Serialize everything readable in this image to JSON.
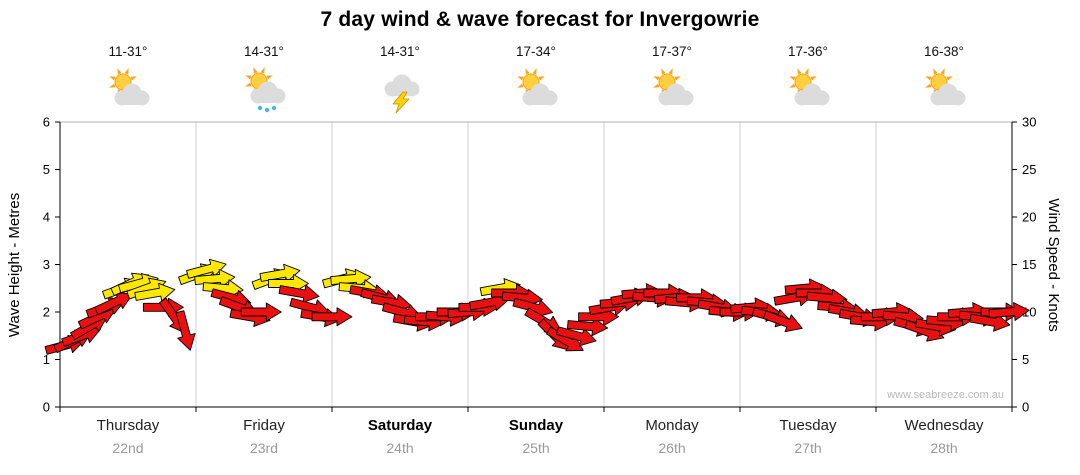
{
  "title": "7 day wind & wave forecast for Invergowrie",
  "watermark": "www.seabreeze.com.au",
  "colors": {
    "arrow_red": "#e81010",
    "arrow_yellow": "#ffe800",
    "arrow_outline": "#000000",
    "grid": "#cfcfcf",
    "axis": "#000000",
    "top_border": "#b0b0b0",
    "sun_core": "#ffcf40",
    "sun_rays": "#f5a623",
    "cloud": "#dcdcdc",
    "cloud_shadow": "#c2c2c2",
    "rain_drop": "#45b6e8",
    "lightning": "#ffd400",
    "watermark_color": "#b8b8b8"
  },
  "axes": {
    "left_title": "Wave Height - Metres",
    "right_title": "Wind Speed - Knots",
    "left_ticks": [
      0,
      1,
      2,
      3,
      4,
      5,
      6
    ],
    "right_ticks": [
      0,
      5,
      10,
      15,
      20,
      25,
      30
    ],
    "left_range": [
      0,
      6
    ],
    "right_range": [
      0,
      30
    ]
  },
  "days": [
    {
      "name": "Thursday",
      "date": "22nd",
      "temp": "11-31°",
      "icon": "sun-cloud",
      "weekend": false
    },
    {
      "name": "Friday",
      "date": "23rd",
      "temp": "14-31°",
      "icon": "sun-cloud-rain",
      "weekend": false
    },
    {
      "name": "Saturday",
      "date": "24th",
      "temp": "14-31°",
      "icon": "storm",
      "weekend": true
    },
    {
      "name": "Sunday",
      "date": "25th",
      "temp": "17-34°",
      "icon": "sun-cloud",
      "weekend": true
    },
    {
      "name": "Monday",
      "date": "26th",
      "temp": "17-37°",
      "icon": "sun-cloud",
      "weekend": false
    },
    {
      "name": "Tuesday",
      "date": "27th",
      "temp": "17-36°",
      "icon": "sun-cloud",
      "weekend": false
    },
    {
      "name": "Wednesday",
      "date": "28th",
      "temp": "16-38°",
      "icon": "sun-cloud",
      "weekend": false
    }
  ],
  "chart_data": {
    "type": "scatter",
    "subtype": "wind-arrows",
    "title": "7 day wind & wave forecast for Invergowrie",
    "xlabel": "",
    "x_categories": [
      "Thursday 22nd",
      "Friday 23rd",
      "Saturday 24th",
      "Sunday 25th",
      "Monday 26th",
      "Tuesday 27th",
      "Wednesday 28th"
    ],
    "left_axis": {
      "label": "Wave Height - Metres",
      "range": [
        0,
        6
      ],
      "ticks": [
        0,
        1,
        2,
        3,
        4,
        5,
        6
      ]
    },
    "right_axis": {
      "label": "Wind Speed - Knots",
      "range": [
        0,
        30
      ],
      "ticks": [
        0,
        5,
        10,
        15,
        20,
        25,
        30
      ]
    },
    "grid": "vertical-day-boundaries",
    "legend": "none",
    "notes": "Arrows show wind speed (knots, right axis) over time; yellow arrows = stronger wind (~12-15 kn), red = lighter (~5-12 kn); arrow rotation = wind direction trend",
    "arrows": [
      {
        "t": 0.04,
        "k": 6.5,
        "d": -15,
        "c": "r"
      },
      {
        "t": 0.1,
        "k": 7.0,
        "d": -25,
        "c": "r"
      },
      {
        "t": 0.16,
        "k": 7.5,
        "d": -20,
        "c": "r"
      },
      {
        "t": 0.22,
        "k": 8.5,
        "d": -30,
        "c": "r"
      },
      {
        "t": 0.28,
        "k": 9.5,
        "d": -25,
        "c": "r"
      },
      {
        "t": 0.34,
        "k": 10.5,
        "d": -20,
        "c": "r"
      },
      {
        "t": 0.4,
        "k": 11.0,
        "d": -25,
        "c": "r"
      },
      {
        "t": 0.46,
        "k": 12.5,
        "d": -20,
        "c": "y"
      },
      {
        "t": 0.52,
        "k": 13.0,
        "d": -25,
        "c": "y"
      },
      {
        "t": 0.58,
        "k": 13.0,
        "d": -15,
        "c": "y"
      },
      {
        "t": 0.64,
        "k": 12.5,
        "d": -20,
        "c": "y"
      },
      {
        "t": 0.7,
        "k": 12.0,
        "d": -10,
        "c": "y"
      },
      {
        "t": 0.76,
        "k": 10.5,
        "d": 0,
        "c": "r"
      },
      {
        "t": 0.84,
        "k": 9.5,
        "d": 55,
        "c": "r"
      },
      {
        "t": 0.92,
        "k": 8.0,
        "d": 75,
        "c": "r"
      },
      {
        "t": 1.02,
        "k": 14.0,
        "d": -20,
        "c": "y"
      },
      {
        "t": 1.08,
        "k": 14.5,
        "d": -15,
        "c": "y"
      },
      {
        "t": 1.14,
        "k": 13.5,
        "d": -5,
        "c": "y"
      },
      {
        "t": 1.2,
        "k": 12.5,
        "d": 5,
        "c": "y"
      },
      {
        "t": 1.26,
        "k": 11.5,
        "d": 15,
        "c": "r"
      },
      {
        "t": 1.32,
        "k": 10.5,
        "d": 20,
        "c": "r"
      },
      {
        "t": 1.4,
        "k": 9.5,
        "d": 10,
        "c": "r"
      },
      {
        "t": 1.48,
        "k": 10.0,
        "d": 0,
        "c": "r"
      },
      {
        "t": 1.56,
        "k": 13.5,
        "d": -20,
        "c": "y"
      },
      {
        "t": 1.62,
        "k": 14.0,
        "d": -10,
        "c": "y"
      },
      {
        "t": 1.68,
        "k": 13.0,
        "d": 0,
        "c": "y"
      },
      {
        "t": 1.76,
        "k": 12.0,
        "d": 10,
        "c": "r"
      },
      {
        "t": 1.84,
        "k": 10.5,
        "d": 15,
        "c": "r"
      },
      {
        "t": 1.92,
        "k": 9.5,
        "d": 10,
        "c": "r"
      },
      {
        "t": 2.0,
        "k": 9.5,
        "d": 0,
        "c": "r"
      },
      {
        "t": 2.08,
        "k": 13.5,
        "d": -15,
        "c": "y"
      },
      {
        "t": 2.14,
        "k": 13.5,
        "d": -5,
        "c": "y"
      },
      {
        "t": 2.2,
        "k": 12.5,
        "d": 5,
        "c": "y"
      },
      {
        "t": 2.28,
        "k": 12.0,
        "d": 10,
        "c": "r"
      },
      {
        "t": 2.36,
        "k": 11.5,
        "d": 15,
        "c": "r"
      },
      {
        "t": 2.44,
        "k": 11.0,
        "d": 10,
        "c": "r"
      },
      {
        "t": 2.52,
        "k": 10.0,
        "d": 15,
        "c": "r"
      },
      {
        "t": 2.6,
        "k": 9.0,
        "d": 10,
        "c": "r"
      },
      {
        "t": 2.68,
        "k": 9.0,
        "d": 5,
        "c": "r"
      },
      {
        "t": 2.76,
        "k": 9.5,
        "d": 0,
        "c": "r"
      },
      {
        "t": 2.84,
        "k": 9.5,
        "d": 5,
        "c": "r"
      },
      {
        "t": 2.92,
        "k": 10.0,
        "d": 0,
        "c": "r"
      },
      {
        "t": 3.0,
        "k": 10.0,
        "d": -5,
        "c": "r"
      },
      {
        "t": 3.08,
        "k": 10.5,
        "d": 0,
        "c": "r"
      },
      {
        "t": 3.16,
        "k": 11.0,
        "d": -10,
        "c": "r"
      },
      {
        "t": 3.24,
        "k": 12.5,
        "d": -10,
        "c": "y"
      },
      {
        "t": 3.32,
        "k": 12.0,
        "d": 0,
        "c": "r"
      },
      {
        "t": 3.4,
        "k": 11.5,
        "d": 5,
        "c": "r"
      },
      {
        "t": 3.48,
        "k": 10.5,
        "d": 15,
        "c": "r"
      },
      {
        "t": 3.56,
        "k": 9.0,
        "d": 30,
        "c": "r"
      },
      {
        "t": 3.64,
        "k": 7.5,
        "d": 45,
        "c": "r"
      },
      {
        "t": 3.72,
        "k": 7.0,
        "d": 30,
        "c": "r"
      },
      {
        "t": 3.8,
        "k": 7.5,
        "d": 15,
        "c": "r"
      },
      {
        "t": 3.88,
        "k": 8.5,
        "d": 5,
        "c": "r"
      },
      {
        "t": 3.96,
        "k": 9.5,
        "d": 0,
        "c": "r"
      },
      {
        "t": 4.04,
        "k": 10.5,
        "d": -10,
        "c": "r"
      },
      {
        "t": 4.12,
        "k": 11.0,
        "d": -5,
        "c": "r"
      },
      {
        "t": 4.2,
        "k": 11.5,
        "d": -10,
        "c": "r"
      },
      {
        "t": 4.28,
        "k": 12.0,
        "d": -5,
        "c": "r"
      },
      {
        "t": 4.36,
        "k": 11.5,
        "d": 5,
        "c": "r"
      },
      {
        "t": 4.44,
        "k": 12.0,
        "d": 0,
        "c": "r"
      },
      {
        "t": 4.52,
        "k": 11.5,
        "d": -5,
        "c": "r"
      },
      {
        "t": 4.6,
        "k": 11.0,
        "d": 5,
        "c": "r"
      },
      {
        "t": 4.68,
        "k": 11.5,
        "d": 0,
        "c": "r"
      },
      {
        "t": 4.76,
        "k": 11.0,
        "d": 5,
        "c": "r"
      },
      {
        "t": 4.84,
        "k": 10.5,
        "d": 10,
        "c": "r"
      },
      {
        "t": 4.92,
        "k": 10.0,
        "d": 5,
        "c": "r"
      },
      {
        "t": 5.0,
        "k": 10.0,
        "d": 0,
        "c": "r"
      },
      {
        "t": 5.08,
        "k": 10.5,
        "d": -5,
        "c": "r"
      },
      {
        "t": 5.16,
        "k": 10.0,
        "d": 5,
        "c": "r"
      },
      {
        "t": 5.24,
        "k": 9.5,
        "d": 15,
        "c": "r"
      },
      {
        "t": 5.32,
        "k": 9.0,
        "d": 20,
        "c": "r"
      },
      {
        "t": 5.4,
        "k": 11.5,
        "d": -10,
        "c": "r"
      },
      {
        "t": 5.48,
        "k": 12.5,
        "d": -5,
        "c": "r"
      },
      {
        "t": 5.56,
        "k": 12.0,
        "d": 0,
        "c": "r"
      },
      {
        "t": 5.64,
        "k": 11.5,
        "d": 5,
        "c": "r"
      },
      {
        "t": 5.72,
        "k": 10.5,
        "d": 5,
        "c": "r"
      },
      {
        "t": 5.8,
        "k": 10.0,
        "d": 10,
        "c": "r"
      },
      {
        "t": 5.88,
        "k": 9.5,
        "d": 10,
        "c": "r"
      },
      {
        "t": 5.96,
        "k": 9.0,
        "d": 5,
        "c": "r"
      },
      {
        "t": 6.04,
        "k": 9.5,
        "d": 0,
        "c": "r"
      },
      {
        "t": 6.12,
        "k": 10.0,
        "d": -5,
        "c": "r"
      },
      {
        "t": 6.2,
        "k": 9.5,
        "d": 5,
        "c": "r"
      },
      {
        "t": 6.28,
        "k": 8.5,
        "d": 15,
        "c": "r"
      },
      {
        "t": 6.36,
        "k": 8.0,
        "d": 20,
        "c": "r"
      },
      {
        "t": 6.44,
        "k": 8.5,
        "d": 10,
        "c": "r"
      },
      {
        "t": 6.52,
        "k": 9.0,
        "d": 5,
        "c": "r"
      },
      {
        "t": 6.6,
        "k": 9.5,
        "d": 0,
        "c": "r"
      },
      {
        "t": 6.68,
        "k": 10.0,
        "d": -5,
        "c": "r"
      },
      {
        "t": 6.76,
        "k": 9.5,
        "d": 5,
        "c": "r"
      },
      {
        "t": 6.84,
        "k": 9.0,
        "d": 10,
        "c": "r"
      },
      {
        "t": 6.92,
        "k": 10.0,
        "d": 0,
        "c": "r"
      },
      {
        "t": 6.98,
        "k": 10.0,
        "d": -5,
        "c": "r"
      }
    ]
  }
}
